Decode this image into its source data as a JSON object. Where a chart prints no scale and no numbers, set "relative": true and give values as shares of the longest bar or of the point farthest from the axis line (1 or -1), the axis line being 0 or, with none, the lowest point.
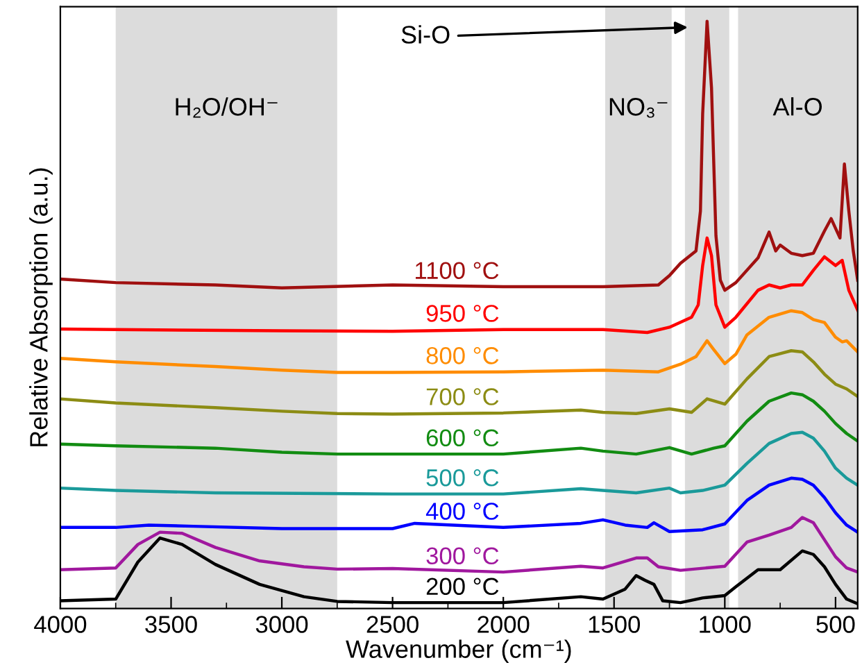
{
  "chart_data": {
    "type": "line",
    "relative": true,
    "xlabel": "Wavenumber (cm⁻¹)",
    "ylabel": "Relative Absorption (a.u.)",
    "xlim": [
      4000,
      400
    ],
    "xticks": [
      4000,
      {
        "value": 3750,
        "label": null
      },
      3500,
      {
        "value": 3250,
        "label": null
      },
      3000,
      {
        "value": 2750,
        "label": null
      },
      2500,
      {
        "value": 2250,
        "label": null
      },
      2000,
      {
        "value": 1750,
        "label": null
      },
      1500,
      {
        "value": 1250,
        "label": null
      },
      1000,
      {
        "value": 750,
        "label": null
      },
      500
    ],
    "grid": false,
    "legend": false,
    "marker": "none",
    "line_style": "solid",
    "bands": [
      {
        "axis": "x",
        "from": 3750,
        "to": 2750,
        "label": "H₂O/OH⁻",
        "color": "#dcdcdc"
      },
      {
        "axis": "x",
        "from": 1540,
        "to": 1240,
        "label": "NO₃⁻",
        "color": "#dcdcdc"
      },
      {
        "axis": "x",
        "from": 1180,
        "to": 980,
        "color": "#dcdcdc"
      },
      {
        "axis": "x",
        "from": 940,
        "to": 400,
        "label": "Al-O",
        "color": "#dcdcdc"
      }
    ],
    "annotations": [
      {
        "text": "Si-O",
        "x": 1150,
        "y": 0.99
      }
    ],
    "series": [
      {
        "name": "200 °C",
        "color": "#000000",
        "x": [
          4000,
          3750,
          3650,
          3550,
          3450,
          3300,
          3100,
          2900,
          2750,
          2500,
          2000,
          1650,
          1550,
          1450,
          1400,
          1360,
          1320,
          1280,
          1200,
          1100,
          1000,
          950,
          850,
          750,
          650,
          600,
          550,
          500,
          450,
          400
        ],
        "values": [
          0.013,
          0.016,
          0.079,
          0.12,
          0.109,
          0.075,
          0.041,
          0.02,
          0.012,
          0.01,
          0.01,
          0.02,
          0.016,
          0.033,
          0.056,
          0.048,
          0.041,
          0.013,
          0.01,
          0.018,
          0.022,
          0.037,
          0.066,
          0.066,
          0.098,
          0.092,
          0.071,
          0.041,
          0.016,
          0.008
        ]
      },
      {
        "name": "300 °C",
        "color": "#a0189e",
        "x": [
          4000,
          3750,
          3650,
          3550,
          3450,
          3300,
          3100,
          2900,
          2750,
          2500,
          2000,
          1650,
          1550,
          1400,
          1350,
          1300,
          1200,
          1000,
          900,
          800,
          700,
          650,
          600,
          550,
          500,
          450,
          400
        ],
        "values": [
          0.066,
          0.069,
          0.109,
          0.13,
          0.128,
          0.104,
          0.081,
          0.071,
          0.067,
          0.068,
          0.062,
          0.072,
          0.069,
          0.086,
          0.086,
          0.071,
          0.065,
          0.072,
          0.113,
          0.125,
          0.138,
          0.155,
          0.146,
          0.117,
          0.088,
          0.069,
          0.062
        ]
      },
      {
        "name": "400 °C",
        "color": "#0000ff",
        "x": [
          4000,
          3750,
          3600,
          3400,
          3000,
          2500,
          2400,
          2000,
          1650,
          1550,
          1450,
          1350,
          1320,
          1250,
          1100,
          1000,
          900,
          800,
          700,
          650,
          600,
          550,
          500,
          450,
          400
        ],
        "values": [
          0.138,
          0.138,
          0.142,
          0.14,
          0.136,
          0.136,
          0.145,
          0.138,
          0.145,
          0.151,
          0.142,
          0.138,
          0.146,
          0.131,
          0.134,
          0.144,
          0.184,
          0.21,
          0.222,
          0.22,
          0.21,
          0.189,
          0.163,
          0.142,
          0.13
        ]
      },
      {
        "name": "500 °C",
        "color": "#1a9a9a",
        "x": [
          4000,
          3750,
          3300,
          2500,
          2000,
          1650,
          1550,
          1400,
          1250,
          1200,
          1100,
          1000,
          900,
          800,
          700,
          650,
          600,
          550,
          500,
          450,
          400
        ],
        "values": [
          0.205,
          0.201,
          0.197,
          0.195,
          0.195,
          0.204,
          0.201,
          0.197,
          0.205,
          0.197,
          0.201,
          0.21,
          0.247,
          0.281,
          0.298,
          0.3,
          0.29,
          0.268,
          0.239,
          0.222,
          0.21
        ]
      },
      {
        "name": "600 °C",
        "color": "#128c12",
        "x": [
          4000,
          3750,
          3300,
          3000,
          2750,
          2500,
          2000,
          1650,
          1550,
          1400,
          1250,
          1150,
          1050,
          1000,
          900,
          800,
          700,
          650,
          600,
          550,
          500,
          450,
          400
        ],
        "values": [
          0.28,
          0.277,
          0.273,
          0.266,
          0.263,
          0.263,
          0.263,
          0.273,
          0.268,
          0.263,
          0.274,
          0.263,
          0.273,
          0.277,
          0.319,
          0.353,
          0.367,
          0.364,
          0.353,
          0.336,
          0.315,
          0.298,
          0.285
        ]
      },
      {
        "name": "700 °C",
        "color": "#8c8c14",
        "x": [
          4000,
          3750,
          3300,
          3000,
          2750,
          2500,
          2000,
          1650,
          1550,
          1400,
          1250,
          1150,
          1080,
          1000,
          900,
          800,
          700,
          650,
          600,
          550,
          500,
          450,
          400
        ],
        "values": [
          0.357,
          0.35,
          0.342,
          0.336,
          0.332,
          0.331,
          0.333,
          0.338,
          0.334,
          0.332,
          0.34,
          0.334,
          0.357,
          0.348,
          0.391,
          0.429,
          0.439,
          0.437,
          0.42,
          0.399,
          0.382,
          0.374,
          0.361
        ]
      },
      {
        "name": "800 °C",
        "color": "#ff8c00",
        "x": [
          4000,
          3750,
          3300,
          3000,
          2750,
          2500,
          2000,
          1550,
          1300,
          1200,
          1130,
          1080,
          1050,
          1000,
          950,
          900,
          800,
          700,
          650,
          600,
          550,
          500,
          470,
          450,
          400
        ],
        "values": [
          0.426,
          0.42,
          0.412,
          0.406,
          0.402,
          0.402,
          0.403,
          0.406,
          0.403,
          0.416,
          0.429,
          0.456,
          0.441,
          0.417,
          0.433,
          0.466,
          0.496,
          0.507,
          0.504,
          0.492,
          0.487,
          0.462,
          0.454,
          0.456,
          0.437
        ]
      },
      {
        "name": "950 °C",
        "color": "#ff0000",
        "x": [
          4000,
          3750,
          3000,
          2500,
          2000,
          1550,
          1350,
          1250,
          1150,
          1120,
          1100,
          1080,
          1060,
          1040,
          1000,
          950,
          850,
          800,
          750,
          700,
          650,
          600,
          550,
          500,
          470,
          440,
          400
        ],
        "values": [
          0.476,
          0.475,
          0.473,
          0.472,
          0.475,
          0.475,
          0.47,
          0.479,
          0.496,
          0.517,
          0.584,
          0.631,
          0.601,
          0.517,
          0.479,
          0.496,
          0.542,
          0.551,
          0.546,
          0.551,
          0.551,
          0.576,
          0.599,
          0.584,
          0.593,
          0.542,
          0.508
        ]
      },
      {
        "name": "1100 °C",
        "color": "#a01010",
        "x": [
          4000,
          3750,
          3300,
          3000,
          2500,
          2000,
          1550,
          1300,
          1250,
          1200,
          1130,
          1110,
          1100,
          1080,
          1060,
          1040,
          1020,
          1000,
          950,
          850,
          800,
          770,
          750,
          700,
          650,
          600,
          550,
          520,
          480,
          460,
          440,
          420,
          400
        ],
        "values": [
          0.561,
          0.555,
          0.551,
          0.546,
          0.551,
          0.548,
          0.548,
          0.551,
          0.567,
          0.588,
          0.609,
          0.677,
          0.842,
          1.0,
          0.887,
          0.635,
          0.559,
          0.542,
          0.555,
          0.597,
          0.641,
          0.609,
          0.619,
          0.605,
          0.601,
          0.605,
          0.643,
          0.664,
          0.631,
          0.757,
          0.677,
          0.609,
          0.559
        ]
      }
    ]
  }
}
